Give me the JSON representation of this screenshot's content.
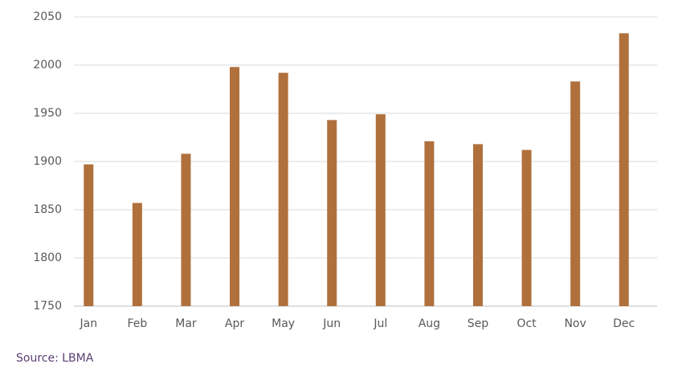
{
  "chart_data": {
    "type": "bar",
    "categories": [
      "Jan",
      "Feb",
      "Mar",
      "Apr",
      "May",
      "Jun",
      "Jul",
      "Aug",
      "Sep",
      "Oct",
      "Nov",
      "Dec"
    ],
    "values": [
      1897,
      1857,
      1908,
      1998,
      1992,
      1943,
      1949,
      1921,
      1918,
      1912,
      1983,
      2033
    ],
    "color": "#b0703c",
    "ylim": [
      1750,
      2050
    ],
    "yticks": [
      1750,
      1800,
      1850,
      1900,
      1950,
      2000,
      2050
    ],
    "grid": true,
    "source": "Source: LBMA"
  }
}
